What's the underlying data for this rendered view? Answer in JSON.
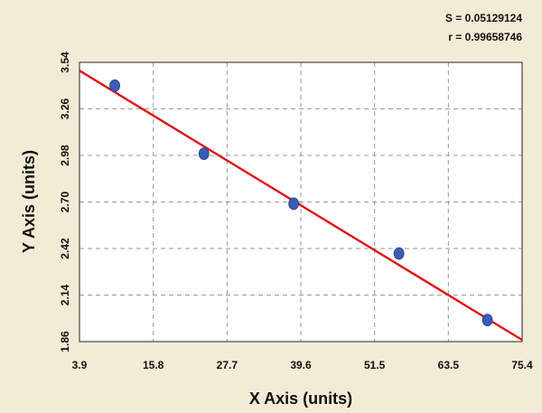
{
  "chart_data": {
    "type": "scatter",
    "xlabel": "X Axis (units)",
    "ylabel": "Y Axis (units)",
    "xlim": [
      3.9,
      75.4
    ],
    "ylim": [
      1.86,
      3.54
    ],
    "x_ticks": [
      "3.9",
      "15.8",
      "27.7",
      "39.6",
      "51.5",
      "63.5",
      "75.4"
    ],
    "y_ticks": [
      "1.86",
      "2.14",
      "2.42",
      "2.70",
      "2.98",
      "3.26",
      "3.54"
    ],
    "grid": true,
    "points": [
      {
        "x": 9.6,
        "y": 3.4
      },
      {
        "x": 24.0,
        "y": 2.99
      },
      {
        "x": 38.5,
        "y": 2.69
      },
      {
        "x": 55.5,
        "y": 2.39
      },
      {
        "x": 69.8,
        "y": 1.99
      }
    ],
    "fit_line": {
      "x": [
        3.9,
        75.4
      ],
      "y": [
        3.49,
        1.87
      ]
    },
    "stats": {
      "s": "S = 0.05129124",
      "r": "r = 0.99658746"
    },
    "colors": {
      "background": "#f2ecd7",
      "plot_area": "#ffffff",
      "points": "#3b5bb5",
      "fit_line": "#e01010",
      "grid": "#9a9a9a"
    }
  }
}
